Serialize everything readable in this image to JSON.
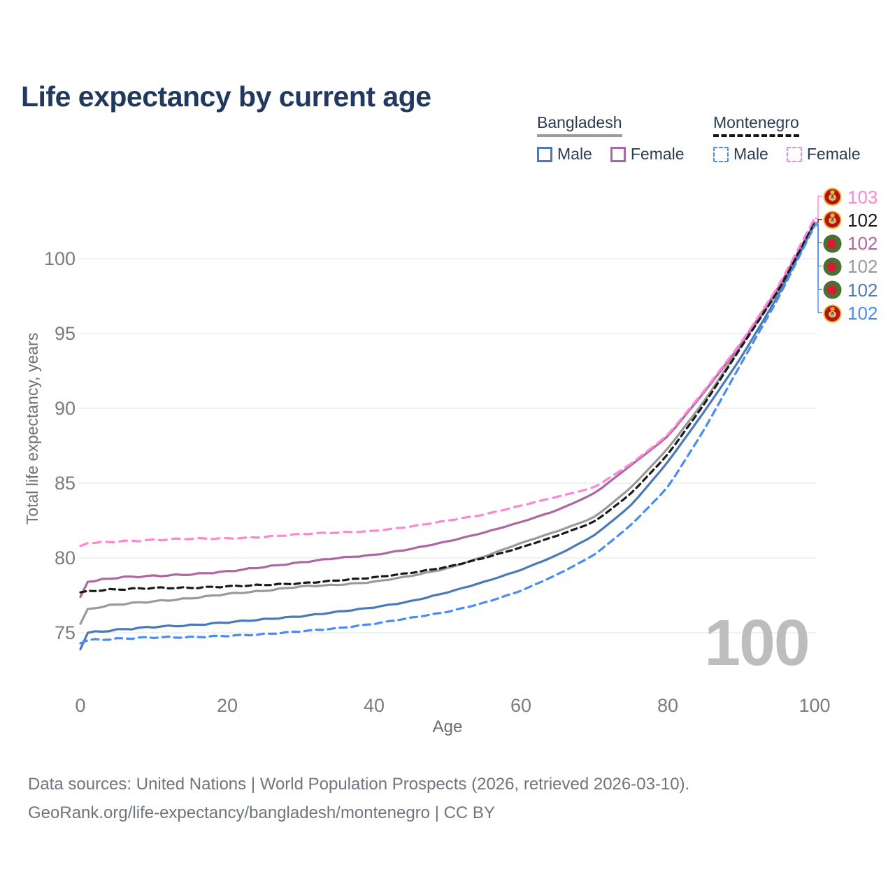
{
  "title": "Life expectancy by current age",
  "legend": {
    "groups": [
      {
        "name": "Bangladesh",
        "line_style": "solid",
        "line_color": "#9a9a9a",
        "items": [
          {
            "label": "Male",
            "color": "#4a7ab7"
          },
          {
            "label": "Female",
            "color": "#ad68a4"
          }
        ]
      },
      {
        "name": "Montenegro",
        "line_style": "dashed",
        "line_color": "#141414",
        "items": [
          {
            "label": "Male",
            "color": "#4b8bf4"
          },
          {
            "label": "Female",
            "color": "#ff85d6"
          }
        ]
      }
    ]
  },
  "chart_data": {
    "type": "line",
    "title": "Life expectancy by current age",
    "xlabel": "Age",
    "ylabel": "Total life expectancy, years",
    "xlim": [
      0,
      100
    ],
    "ylim": [
      73.5,
      103.5
    ],
    "xticks": [
      0,
      20,
      40,
      60,
      80,
      100
    ],
    "yticks": [
      75,
      80,
      85,
      90,
      95,
      100
    ],
    "grid": "horizontal-only",
    "legend_position": "top-right",
    "x": [
      0,
      1,
      5,
      10,
      15,
      20,
      25,
      30,
      35,
      40,
      45,
      50,
      55,
      60,
      65,
      70,
      75,
      80,
      85,
      90,
      95,
      100
    ],
    "series": [
      {
        "name": "Bangladesh Both sexes",
        "key": "bgd_total",
        "style": "solid",
        "color": "#9a9a9a",
        "values": [
          75.6,
          76.6,
          76.9,
          77.1,
          77.3,
          77.6,
          77.8,
          78.1,
          78.2,
          78.4,
          78.8,
          79.3,
          80.1,
          81.0,
          81.8,
          82.7,
          84.7,
          87.3,
          90.5,
          94.2,
          97.8,
          102.35
        ]
      },
      {
        "name": "Bangladesh Female",
        "key": "bgd_female",
        "style": "solid",
        "color": "#ad68a4",
        "values": [
          77.4,
          78.4,
          78.7,
          78.8,
          78.9,
          79.1,
          79.4,
          79.7,
          80.0,
          80.2,
          80.6,
          81.1,
          81.7,
          82.4,
          83.2,
          84.3,
          86.2,
          88.1,
          91.1,
          94.3,
          98.0,
          102.4
        ]
      },
      {
        "name": "Bangladesh Male",
        "key": "bgd_male",
        "style": "solid",
        "color": "#4a7ab7",
        "values": [
          73.9,
          75.0,
          75.2,
          75.4,
          75.5,
          75.7,
          75.9,
          76.1,
          76.4,
          76.7,
          77.1,
          77.7,
          78.4,
          79.2,
          80.2,
          81.5,
          83.5,
          86.4,
          89.8,
          93.4,
          97.5,
          102.3
        ]
      },
      {
        "name": "Montenegro Both sexes",
        "key": "mne_total",
        "style": "dashed",
        "color": "#1a1a1a",
        "values": [
          77.7,
          77.8,
          77.9,
          78.0,
          78.0,
          78.1,
          78.2,
          78.3,
          78.5,
          78.7,
          79.0,
          79.4,
          80.0,
          80.7,
          81.5,
          82.4,
          84.3,
          86.9,
          90.3,
          94.1,
          97.8,
          102.4
        ]
      },
      {
        "name": "Montenegro Female",
        "key": "mne_female",
        "style": "dashed",
        "color": "#ff85d6",
        "values": [
          80.8,
          81.0,
          81.1,
          81.2,
          81.3,
          81.3,
          81.4,
          81.6,
          81.7,
          81.8,
          82.1,
          82.5,
          82.9,
          83.5,
          84.1,
          84.7,
          86.3,
          88.2,
          91.2,
          94.4,
          98.1,
          102.7
        ]
      },
      {
        "name": "Montenegro Male",
        "key": "mne_male",
        "style": "dashed",
        "color": "#4b8bf4",
        "values": [
          74.3,
          74.5,
          74.6,
          74.7,
          74.7,
          74.8,
          74.9,
          75.1,
          75.3,
          75.6,
          76.0,
          76.4,
          77.0,
          77.8,
          78.9,
          80.2,
          82.2,
          84.7,
          88.6,
          93.0,
          97.3,
          102.2
        ]
      }
    ]
  },
  "end_labels": [
    {
      "value": "103",
      "series": "mne_female",
      "flag": "montenegro-flag-icon"
    },
    {
      "value": "102",
      "series": "mne_total",
      "flag": "montenegro-flag-icon"
    },
    {
      "value": "102",
      "series": "bgd_female",
      "flag": "bangladesh-flag-icon"
    },
    {
      "value": "102",
      "series": "bgd_total",
      "flag": "bangladesh-flag-icon"
    },
    {
      "value": "102",
      "series": "bgd_male",
      "flag": "bangladesh-flag-icon"
    },
    {
      "value": "102",
      "series": "mne_male",
      "flag": "montenegro-flag-icon"
    }
  ],
  "watermark": "100",
  "footer": {
    "line1": "Data sources: United Nations | World Population Prospects (2026, retrieved 2026-03-10).",
    "line2": "GeoRank.org/life-expectancy/bangladesh/montenegro | CC BY"
  }
}
